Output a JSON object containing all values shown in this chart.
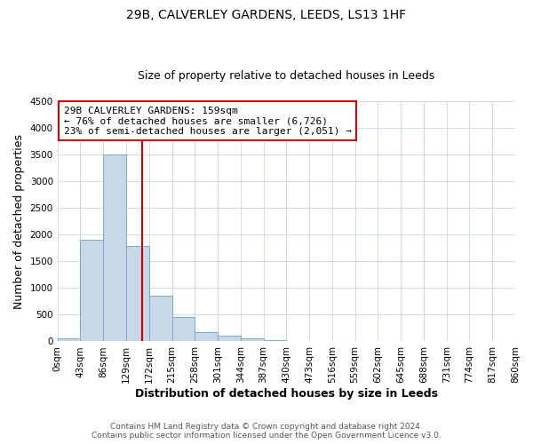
{
  "title": "29B, CALVERLEY GARDENS, LEEDS, LS13 1HF",
  "subtitle": "Size of property relative to detached houses in Leeds",
  "xlabel": "Distribution of detached houses by size in Leeds",
  "ylabel": "Number of detached properties",
  "bin_edges": [
    0,
    43,
    86,
    129,
    172,
    215,
    258,
    301,
    344,
    387,
    430,
    473,
    516,
    559,
    602,
    645,
    688,
    731,
    774,
    817,
    860
  ],
  "bin_labels": [
    "0sqm",
    "43sqm",
    "86sqm",
    "129sqm",
    "172sqm",
    "215sqm",
    "258sqm",
    "301sqm",
    "344sqm",
    "387sqm",
    "430sqm",
    "473sqm",
    "516sqm",
    "559sqm",
    "602sqm",
    "645sqm",
    "688sqm",
    "731sqm",
    "774sqm",
    "817sqm",
    "860sqm"
  ],
  "bar_heights": [
    50,
    1900,
    3500,
    1780,
    860,
    460,
    175,
    100,
    55,
    30,
    15,
    10,
    5,
    3,
    2,
    2,
    1,
    1,
    1,
    1
  ],
  "bar_color": "#c8d8e8",
  "bar_edgecolor": "#7aaac8",
  "property_line_x": 159,
  "property_line_color": "#cc0000",
  "ylim": [
    0,
    4500
  ],
  "yticks": [
    0,
    500,
    1000,
    1500,
    2000,
    2500,
    3000,
    3500,
    4000,
    4500
  ],
  "annotation_title": "29B CALVERLEY GARDENS: 159sqm",
  "annotation_line1": "← 76% of detached houses are smaller (6,726)",
  "annotation_line2": "23% of semi-detached houses are larger (2,051) →",
  "annotation_box_color": "#ffffff",
  "annotation_box_edgecolor": "#cc0000",
  "footer_line1": "Contains HM Land Registry data © Crown copyright and database right 2024.",
  "footer_line2": "Contains public sector information licensed under the Open Government Licence v3.0.",
  "background_color": "#ffffff",
  "grid_color": "#c8d8e8",
  "title_fontsize": 10,
  "subtitle_fontsize": 9,
  "axis_label_fontsize": 9,
  "tick_fontsize": 7.5,
  "footer_fontsize": 6.5,
  "annotation_fontsize": 8
}
